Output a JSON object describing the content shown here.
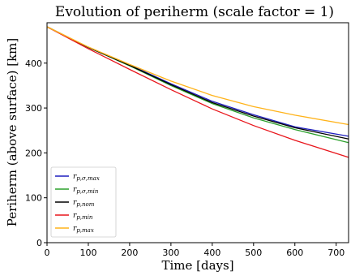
{
  "chart_data": {
    "type": "line",
    "title": "Evolution of periherm (scale factor = 1)",
    "xlabel": "Time [days]",
    "ylabel": "Periherm (above surface) [km]",
    "xlim": [
      0,
      730
    ],
    "ylim": [
      0,
      490
    ],
    "x_ticks": [
      0,
      100,
      200,
      300,
      400,
      500,
      600,
      700
    ],
    "y_ticks": [
      0,
      100,
      200,
      300,
      400
    ],
    "grid": false,
    "legend_position": "lower-left",
    "series": [
      {
        "name": "r_p,σ,max",
        "color": "#1f1fbf",
        "x": [
          0,
          100,
          200,
          300,
          400,
          500,
          600,
          730
        ],
        "y": [
          481,
          435,
          396,
          354,
          315,
          285,
          258,
          237
        ]
      },
      {
        "name": "r_p,σ,min",
        "color": "#2ca02c",
        "x": [
          0,
          100,
          200,
          300,
          400,
          500,
          600,
          730
        ],
        "y": [
          481,
          435,
          394,
          350,
          310,
          278,
          252,
          223
        ]
      },
      {
        "name": "r_p,nom",
        "color": "#000000",
        "x": [
          0,
          100,
          200,
          300,
          400,
          500,
          600,
          730
        ],
        "y": [
          481,
          435,
          395,
          352,
          312,
          282,
          256,
          231
        ]
      },
      {
        "name": "r_p,min",
        "color": "#e8151b",
        "x": [
          0,
          100,
          200,
          300,
          400,
          500,
          600,
          730
        ],
        "y": [
          481,
          432,
          386,
          341,
          298,
          261,
          228,
          190
        ]
      },
      {
        "name": "r_p,max",
        "color": "#ffb31a",
        "x": [
          0,
          100,
          200,
          300,
          400,
          500,
          600,
          730
        ],
        "y": [
          481,
          436,
          397,
          360,
          328,
          303,
          284,
          263
        ]
      }
    ]
  }
}
